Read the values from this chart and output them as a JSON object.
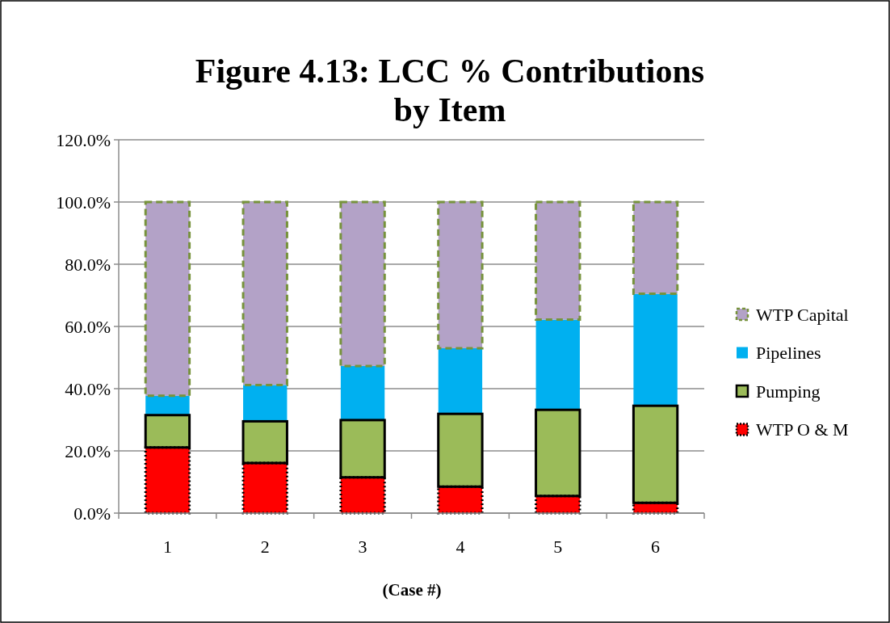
{
  "chart_data": {
    "type": "bar",
    "title": "Figure 4.13: LCC % Contributions by Item",
    "xlabel": "(Case #)",
    "categories": [
      "1",
      "2",
      "3",
      "4",
      "5",
      "6"
    ],
    "stacked": true,
    "series": [
      {
        "name": "WTP O & M",
        "color": "#ff0000",
        "line_style": "dotted",
        "values": [
          21.1,
          16.1,
          11.5,
          8.5,
          5.5,
          3.3
        ]
      },
      {
        "name": "Pumping",
        "color": "#9bbb59",
        "line_style": "solid",
        "values": [
          10.4,
          13.4,
          18.4,
          23.4,
          27.7,
          31.2
        ]
      },
      {
        "name": "Pipelines",
        "color": "#00b0f0",
        "values": [
          6.2,
          11.7,
          17.4,
          21.1,
          29.0,
          36.0
        ]
      },
      {
        "name": "WTP Capital",
        "color": "#b3a2c7",
        "line_style": "dashed",
        "values": [
          62.3,
          58.8,
          52.7,
          47.0,
          37.8,
          29.5
        ]
      }
    ],
    "ylim": [
      0,
      120
    ],
    "yticks": [
      {
        "value": 0,
        "label": "0.0%"
      },
      {
        "value": 20,
        "label": "20.0%"
      },
      {
        "value": 40,
        "label": "40.0%"
      },
      {
        "value": 60,
        "label": "60.0%"
      },
      {
        "value": 80,
        "label": "80.0%"
      },
      {
        "value": 100,
        "label": "100.0%"
      },
      {
        "value": 120,
        "label": "120.0%"
      }
    ],
    "grid": "y",
    "legend": "right"
  }
}
